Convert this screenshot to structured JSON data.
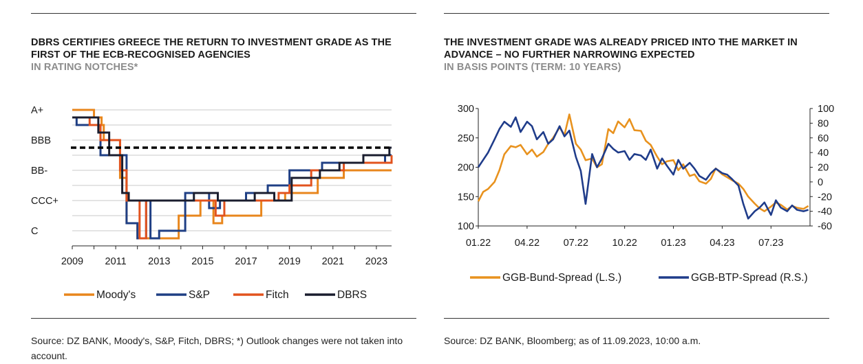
{
  "colors": {
    "moodys": "#E8861C",
    "sp": "#1F3F84",
    "fitch": "#E2531E",
    "dbrs": "#1A1D2E",
    "bund": "#E8921E",
    "btp": "#1F3C8A",
    "grid": "#c8c8c8"
  },
  "left": {
    "title": "DBRS CERTIFIES GREECE THE RETURN TO INVESTMENT GRADE AS THE FIRST OF THE ECB-RECOGNISED AGENCIES",
    "subtitle": "IN RATING NOTCHES*",
    "source": "Source: DZ BANK, Moody's, S&P, Fitch, DBRS; *) Outlook changes were not taken into account."
  },
  "right": {
    "title": "THE INVESTMENT GRADE WAS ALREADY PRICED INTO THE MARKET IN ADVANCE – NO FURTHER NARROWING EXPECTED",
    "subtitle": "IN BASIS POINTS (TERM: 10 YEARS)",
    "source": "Source: DZ BANK, Bloomberg; as of 11.09.2023, 10:00 a.m."
  },
  "chart_data": [
    {
      "type": "line",
      "step": true,
      "title": "DBRS CERTIFIES GREECE THE RETURN TO INVESTMENT GRADE AS THE FIRST OF THE ECB-RECOGNISED AGENCIES",
      "subtitle": "IN RATING NOTCHES*",
      "y_scale": "notches below A+ (0 = A+, 16 = C)",
      "y_ticks": [
        {
          "label": "A+",
          "notch": 0
        },
        {
          "label": "BBB",
          "notch": 4
        },
        {
          "label": "BB-",
          "notch": 8
        },
        {
          "label": "CCC+",
          "notch": 12
        },
        {
          "label": "C",
          "notch": 16
        }
      ],
      "xlim": [
        2009,
        2023.7
      ],
      "ylim_notch": [
        0,
        18
      ],
      "x_ticks": [
        "2009",
        "2011",
        "2013",
        "2015",
        "2017",
        "2019",
        "2021",
        "2023"
      ],
      "investment_grade_threshold_notch": 5,
      "grid": "horizontal",
      "legend_position": "bottom",
      "series": [
        {
          "name": "Moody's",
          "color": "moodys",
          "x": [
            2009,
            2010.0,
            2010.35,
            2010.45,
            2011.2,
            2011.5,
            2012.0,
            2013.9,
            2014.9,
            2015.5,
            2015.9,
            2017.7,
            2018.8,
            2020.3,
            2021.5,
            2022.0,
            2023.7
          ],
          "y": [
            0,
            1,
            2,
            4,
            9,
            15,
            17,
            14,
            12,
            15,
            14,
            12,
            11,
            9,
            8,
            8,
            8
          ]
        },
        {
          "name": "S&P",
          "color": "sp",
          "x": [
            2009,
            2009.2,
            2010.3,
            2011.0,
            2011.5,
            2012.0,
            2012.4,
            2012.6,
            2013.0,
            2014.2,
            2015.0,
            2015.3,
            2015.8,
            2017.0,
            2018.0,
            2019.0,
            2019.8,
            2020.5,
            2022.0,
            2023.4,
            2023.7
          ],
          "y": [
            1,
            2,
            6,
            6,
            15,
            17,
            12,
            17,
            16,
            11,
            11,
            13,
            12,
            11,
            10,
            8,
            8,
            7,
            7,
            6,
            6
          ]
        },
        {
          "name": "Fitch",
          "color": "fitch",
          "x": [
            2009,
            2009.8,
            2010.3,
            2011.2,
            2011.5,
            2012.1,
            2012.4,
            2013.0,
            2014.2,
            2015.6,
            2016.0,
            2017.0,
            2018.5,
            2019.0,
            2020.0,
            2021.5,
            2022.7,
            2023.7
          ],
          "y": [
            1,
            2,
            4,
            8,
            12,
            17,
            12,
            12,
            12,
            14,
            12,
            12,
            11,
            10,
            8,
            7,
            7,
            6
          ]
        },
        {
          "name": "DBRS",
          "color": "dbrs",
          "x": [
            2009,
            2010.2,
            2010.7,
            2011.3,
            2011.6,
            2013.7,
            2014.6,
            2015.7,
            2016.3,
            2017.4,
            2018.3,
            2019.1,
            2020.4,
            2021.3,
            2022.4,
            2023.6,
            2023.7
          ],
          "y": [
            1,
            3,
            6,
            11,
            12,
            12,
            11,
            12,
            12,
            11,
            12,
            9,
            8,
            7,
            6,
            5,
            5
          ]
        }
      ]
    },
    {
      "type": "line",
      "title": "THE INVESTMENT GRADE WAS ALREADY PRICED INTO THE MARKET IN ADVANCE – NO FURTHER NARROWING EXPECTED",
      "subtitle": "IN BASIS POINTS (TERM: 10 YEARS)",
      "x_ticks": [
        "01.22",
        "04.22",
        "07.22",
        "10.22",
        "01.23",
        "04.23",
        "07.23"
      ],
      "x_unit": "months since 01.22",
      "xlim": [
        0,
        20.4
      ],
      "y_left": {
        "ticks": [
          300,
          250,
          200,
          150,
          100
        ],
        "ylim": [
          100,
          300
        ]
      },
      "y_right": {
        "ticks": [
          100,
          80,
          60,
          40,
          20,
          0,
          -20,
          -40,
          -60
        ],
        "ylim": [
          -60,
          100
        ]
      },
      "grid": "off",
      "legend_position": "bottom",
      "series": [
        {
          "name": "GGB-Bund-Spread (L.S.)",
          "axis": "left",
          "color": "bund",
          "x": [
            0.0,
            0.3,
            0.6,
            1.0,
            1.3,
            1.6,
            2.0,
            2.3,
            2.6,
            3.0,
            3.3,
            3.6,
            4.0,
            4.3,
            4.6,
            5.0,
            5.3,
            5.6,
            6.0,
            6.3,
            6.6,
            7.0,
            7.3,
            7.6,
            8.0,
            8.3,
            8.6,
            9.0,
            9.3,
            9.6,
            10.0,
            10.3,
            10.6,
            11.0,
            11.3,
            11.6,
            12.0,
            12.3,
            12.6,
            13.0,
            13.3,
            13.6,
            14.0,
            14.3,
            14.6,
            15.0,
            15.3,
            15.6,
            16.0,
            16.3,
            16.6,
            17.0,
            17.3,
            17.6,
            18.0,
            18.3,
            18.6,
            19.0,
            19.3,
            19.6,
            20.0,
            20.3
          ],
          "y": [
            142,
            158,
            163,
            175,
            195,
            222,
            236,
            234,
            238,
            222,
            230,
            218,
            226,
            240,
            250,
            268,
            255,
            290,
            240,
            230,
            212,
            215,
            200,
            205,
            265,
            258,
            278,
            268,
            282,
            263,
            262,
            245,
            238,
            218,
            205,
            210,
            212,
            195,
            205,
            185,
            188,
            176,
            172,
            180,
            198,
            188,
            183,
            178,
            172,
            163,
            150,
            138,
            130,
            125,
            133,
            140,
            136,
            128,
            134,
            131,
            129,
            134
          ]
        },
        {
          "name": "GGB-BTP-Spread (R.S.)",
          "axis": "right",
          "color": "btp",
          "x": [
            0.0,
            0.3,
            0.6,
            1.0,
            1.3,
            1.6,
            2.0,
            2.3,
            2.6,
            3.0,
            3.3,
            3.6,
            4.0,
            4.3,
            4.6,
            5.0,
            5.3,
            5.6,
            6.0,
            6.3,
            6.6,
            7.0,
            7.3,
            7.6,
            8.0,
            8.3,
            8.6,
            9.0,
            9.3,
            9.6,
            10.0,
            10.3,
            10.6,
            11.0,
            11.3,
            11.6,
            12.0,
            12.3,
            12.6,
            13.0,
            13.3,
            13.6,
            14.0,
            14.3,
            14.6,
            15.0,
            15.3,
            15.6,
            16.0,
            16.3,
            16.6,
            17.0,
            17.3,
            17.6,
            18.0,
            18.3,
            18.6,
            19.0,
            19.3,
            19.6,
            20.0,
            20.3
          ],
          "y": [
            20,
            30,
            40,
            58,
            72,
            82,
            75,
            88,
            68,
            82,
            76,
            58,
            68,
            52,
            58,
            76,
            62,
            70,
            34,
            15,
            -30,
            38,
            20,
            32,
            52,
            45,
            40,
            42,
            30,
            38,
            36,
            30,
            44,
            18,
            32,
            22,
            10,
            30,
            18,
            26,
            18,
            8,
            3,
            12,
            18,
            12,
            10,
            4,
            -5,
            -30,
            -50,
            -40,
            -35,
            -28,
            -45,
            -25,
            -35,
            -40,
            -32,
            -38,
            -40,
            -38
          ]
        }
      ]
    }
  ]
}
